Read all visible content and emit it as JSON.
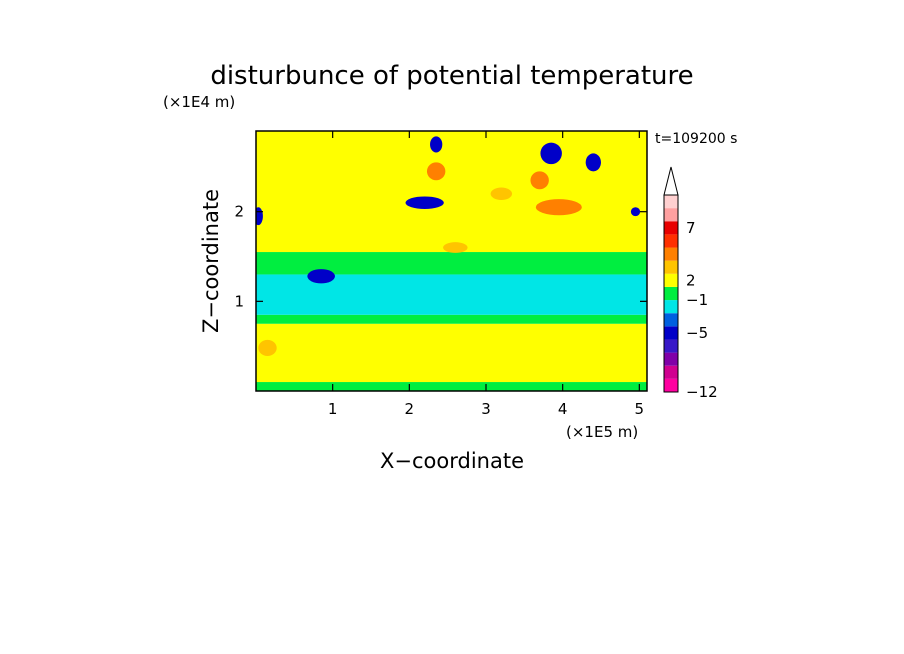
{
  "chart_data": {
    "type": "heatmap",
    "title": "disturbunce of potential temperature",
    "time_label": "t=109200 s",
    "xlabel": "X−coordinate",
    "ylabel": "Z−coordinate",
    "x_scale_label": "(×1E5 m)",
    "y_scale_label": "(×1E4 m)",
    "xlim": [
      0,
      5.1
    ],
    "ylim": [
      0,
      2.9
    ],
    "x_ticks": [
      {
        "value": 1,
        "label": "1"
      },
      {
        "value": 2,
        "label": "2"
      },
      {
        "value": 3,
        "label": "3"
      },
      {
        "value": 4,
        "label": "4"
      },
      {
        "value": 5,
        "label": "5"
      }
    ],
    "y_ticks": [
      {
        "value": 1,
        "label": "1"
      },
      {
        "value": 2,
        "label": "2"
      }
    ],
    "colorbar": {
      "colors": [
        "#ff00a0",
        "#d00090",
        "#8000a8",
        "#3818c8",
        "#0000c8",
        "#0060e0",
        "#00e6e6",
        "#00ee40",
        "#ffff00",
        "#ffc400",
        "#ff8000",
        "#ff3000",
        "#e80000",
        "#ffa0a0",
        "#ffd0d0"
      ],
      "tick_labels": [
        {
          "label": "−12",
          "boundary": 0
        },
        {
          "label": "−5",
          "boundary": 4.5
        },
        {
          "label": "−1",
          "boundary": 7
        },
        {
          "label": "2",
          "boundary": 8.5
        },
        {
          "label": "7",
          "boundary": 12.5
        }
      ],
      "extend": "max"
    },
    "field_regions": [
      {
        "x": [
          0,
          5.1
        ],
        "z": [
          0,
          0.1
        ],
        "level": "green"
      },
      {
        "x": [
          0,
          5.1
        ],
        "z": [
          0.1,
          0.75
        ],
        "level": "yellow"
      },
      {
        "x": [
          0,
          5.1
        ],
        "z": [
          0.75,
          0.85
        ],
        "level": "green"
      },
      {
        "x": [
          0,
          5.1
        ],
        "z": [
          0.85,
          1.3
        ],
        "level": "cyan"
      },
      {
        "x": [
          0,
          5.1
        ],
        "z": [
          1.3,
          1.55
        ],
        "level": "green"
      },
      {
        "x": [
          0,
          5.1
        ],
        "z": [
          1.55,
          2.9
        ],
        "level": "yellow"
      }
    ],
    "features": [
      {
        "x": 0.85,
        "z": 1.28,
        "rx": 0.18,
        "rz": 0.08,
        "level": "blue"
      },
      {
        "x": 0.03,
        "z": 1.95,
        "rx": 0.06,
        "rz": 0.1,
        "level": "blue"
      },
      {
        "x": 2.2,
        "z": 2.1,
        "rx": 0.25,
        "rz": 0.07,
        "level": "blue"
      },
      {
        "x": 2.35,
        "z": 2.75,
        "rx": 0.08,
        "rz": 0.09,
        "level": "blue"
      },
      {
        "x": 3.85,
        "z": 2.65,
        "rx": 0.14,
        "rz": 0.12,
        "level": "blue"
      },
      {
        "x": 4.4,
        "z": 2.55,
        "rx": 0.1,
        "rz": 0.1,
        "level": "blue"
      },
      {
        "x": 4.95,
        "z": 2.0,
        "rx": 0.06,
        "rz": 0.05,
        "level": "blue"
      },
      {
        "x": 2.35,
        "z": 2.45,
        "rx": 0.12,
        "rz": 0.1,
        "level": "red"
      },
      {
        "x": 3.95,
        "z": 2.05,
        "rx": 0.3,
        "rz": 0.09,
        "level": "red"
      },
      {
        "x": 3.7,
        "z": 2.35,
        "rx": 0.12,
        "rz": 0.1,
        "level": "red"
      },
      {
        "x": 3.2,
        "z": 2.2,
        "rx": 0.14,
        "rz": 0.07,
        "level": "orange"
      },
      {
        "x": 2.6,
        "z": 1.6,
        "rx": 0.16,
        "rz": 0.06,
        "level": "orange"
      },
      {
        "x": 0.15,
        "z": 0.48,
        "rx": 0.12,
        "rz": 0.09,
        "level": "orange"
      }
    ]
  }
}
